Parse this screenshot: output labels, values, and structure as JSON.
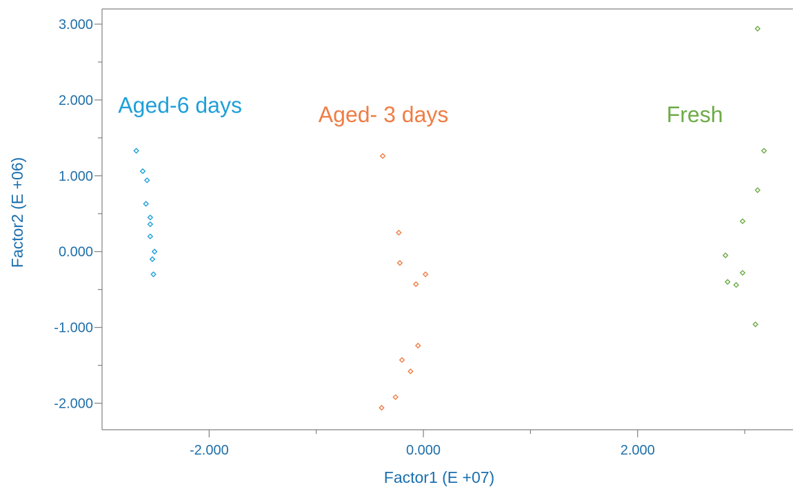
{
  "chart_data": {
    "type": "scatter",
    "title": "",
    "xlabel": "Factor1 (E +07)",
    "ylabel": "Factor2 (E +06)",
    "xlim": [
      -3.0,
      3.45
    ],
    "ylim": [
      -2.35,
      3.2
    ],
    "x_ticks": [
      -2.0,
      0.0,
      2.0
    ],
    "x_tick_labels": [
      "-2.000",
      "0.000",
      "2.000"
    ],
    "x_minor_ticks": [
      -1.0,
      1.0,
      3.0
    ],
    "y_ticks": [
      -2.0,
      -1.0,
      0.0,
      1.0,
      2.0,
      3.0
    ],
    "y_tick_labels": [
      "-2.000",
      "-1.000",
      "0.000",
      "1.000",
      "2.000",
      "3.000"
    ],
    "y_minor_ticks": [
      -1.5,
      -0.5,
      0.5,
      1.5,
      2.5
    ],
    "grid": false,
    "series": [
      {
        "name": "Aged-6 days",
        "color": "#1f9fd8",
        "marker": "diamond",
        "points": [
          [
            -2.68,
            1.33
          ],
          [
            -2.62,
            1.06
          ],
          [
            -2.58,
            0.94
          ],
          [
            -2.59,
            0.63
          ],
          [
            -2.55,
            0.45
          ],
          [
            -2.55,
            0.36
          ],
          [
            -2.55,
            0.2
          ],
          [
            -2.51,
            0.0
          ],
          [
            -2.53,
            -0.1
          ],
          [
            -2.52,
            -0.3
          ]
        ]
      },
      {
        "name": "Aged- 3 days",
        "color": "#ef7d45",
        "marker": "diamond",
        "points": [
          [
            -0.38,
            1.26
          ],
          [
            -0.23,
            0.25
          ],
          [
            -0.22,
            -0.15
          ],
          [
            0.02,
            -0.3
          ],
          [
            -0.07,
            -0.43
          ],
          [
            -0.05,
            -1.24
          ],
          [
            -0.2,
            -1.43
          ],
          [
            -0.12,
            -1.58
          ],
          [
            -0.26,
            -1.92
          ],
          [
            -0.39,
            -2.06
          ]
        ]
      },
      {
        "name": "Fresh",
        "color": "#6eab47",
        "marker": "diamond",
        "points": [
          [
            3.12,
            2.94
          ],
          [
            3.18,
            1.33
          ],
          [
            3.12,
            0.81
          ],
          [
            2.98,
            0.4
          ],
          [
            2.82,
            -0.05
          ],
          [
            2.98,
            -0.28
          ],
          [
            2.84,
            -0.4
          ],
          [
            2.92,
            -0.44
          ],
          [
            3.1,
            -0.96
          ]
        ]
      }
    ],
    "series_labels": [
      {
        "text": "Aged-6 days",
        "color": "#1f9fd8",
        "x": -2.85,
        "y": 1.83
      },
      {
        "text": "Aged- 3 days",
        "color": "#ef7d45",
        "x": -0.98,
        "y": 1.71
      },
      {
        "text": "Fresh",
        "color": "#6eab47",
        "x": 2.27,
        "y": 1.71
      }
    ]
  }
}
